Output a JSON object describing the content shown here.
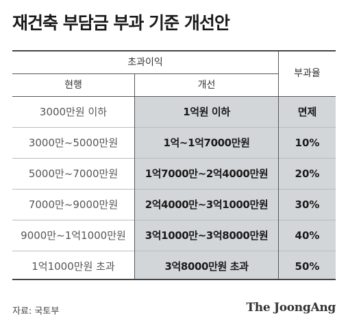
{
  "title": "재건축 부담금 부과 기준 개선안",
  "table": {
    "group_header": "초과이익",
    "col_current": "현행",
    "col_improved": "개선",
    "col_rate": "부과율",
    "rows": [
      {
        "current": "3000만원 이하",
        "improved": "1억원 이하",
        "rate": "면제"
      },
      {
        "current": "3000만~5000만원",
        "improved": "1억~1억7000만원",
        "rate": "10%"
      },
      {
        "current": "5000만~7000만원",
        "improved": "1억7000만~2억4000만원",
        "rate": "20%"
      },
      {
        "current": "7000만~9000만원",
        "improved": "2억4000만~3억1000만원",
        "rate": "30%"
      },
      {
        "current": "9000만~1억1000만원",
        "improved": "3억1000만~3억8000만원",
        "rate": "40%"
      },
      {
        "current": "1억1000만원 초과",
        "improved": "3억8000만원 초과",
        "rate": "50%"
      }
    ]
  },
  "source": "자료: 국토부",
  "brand": "The JoongAng",
  "colors": {
    "highlight": "#d2d6d9",
    "rule": "#444444"
  }
}
